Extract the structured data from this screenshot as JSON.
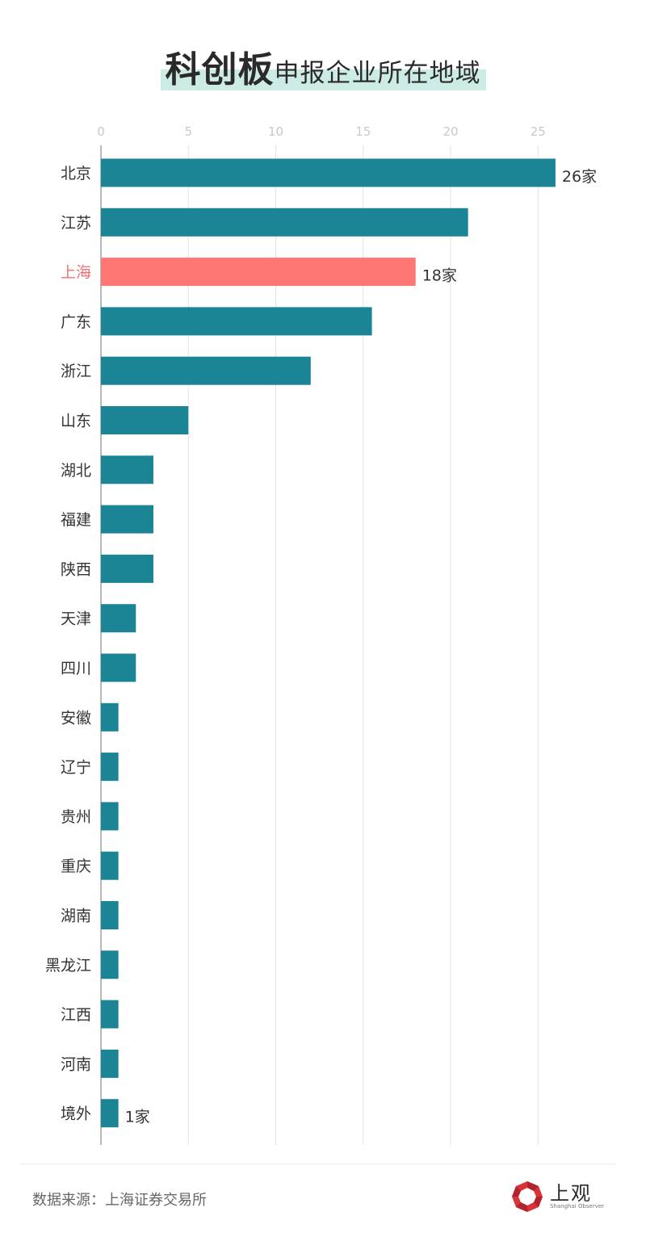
{
  "title": {
    "bold": "科创板",
    "rest": "申报企业所在地域"
  },
  "colors": {
    "bar": "#1b8596",
    "highlight_bar": "#fe7775",
    "highlight_label": "#f07070",
    "title_highlight": "#cdebe5"
  },
  "chart_data": {
    "type": "bar",
    "orientation": "horizontal",
    "title": "科创板申报企业所在地域",
    "xlim": [
      0,
      27
    ],
    "xticks": [
      0,
      5,
      10,
      15,
      20,
      25
    ],
    "grid": true,
    "categories": [
      "北京",
      "江苏",
      "上海",
      "广东",
      "浙江",
      "山东",
      "湖北",
      "福建",
      "陕西",
      "天津",
      "四川",
      "安徽",
      "辽宁",
      "贵州",
      "重庆",
      "湖南",
      "黑龙江",
      "江西",
      "河南",
      "境外"
    ],
    "values": [
      26,
      21,
      18,
      15.5,
      12,
      5,
      3,
      3,
      3,
      2,
      2,
      1,
      1,
      1,
      1,
      1,
      1,
      1,
      1,
      1
    ],
    "highlight": "上海",
    "annotations": [
      {
        "category": "北京",
        "text": "26家"
      },
      {
        "category": "上海",
        "text": "18家"
      },
      {
        "category": "境外",
        "text": "1家"
      }
    ]
  },
  "footer": {
    "source": "数据来源：上海证券交易所",
    "logo_text": "上观",
    "logo_sub": "Shanghai Observer"
  }
}
